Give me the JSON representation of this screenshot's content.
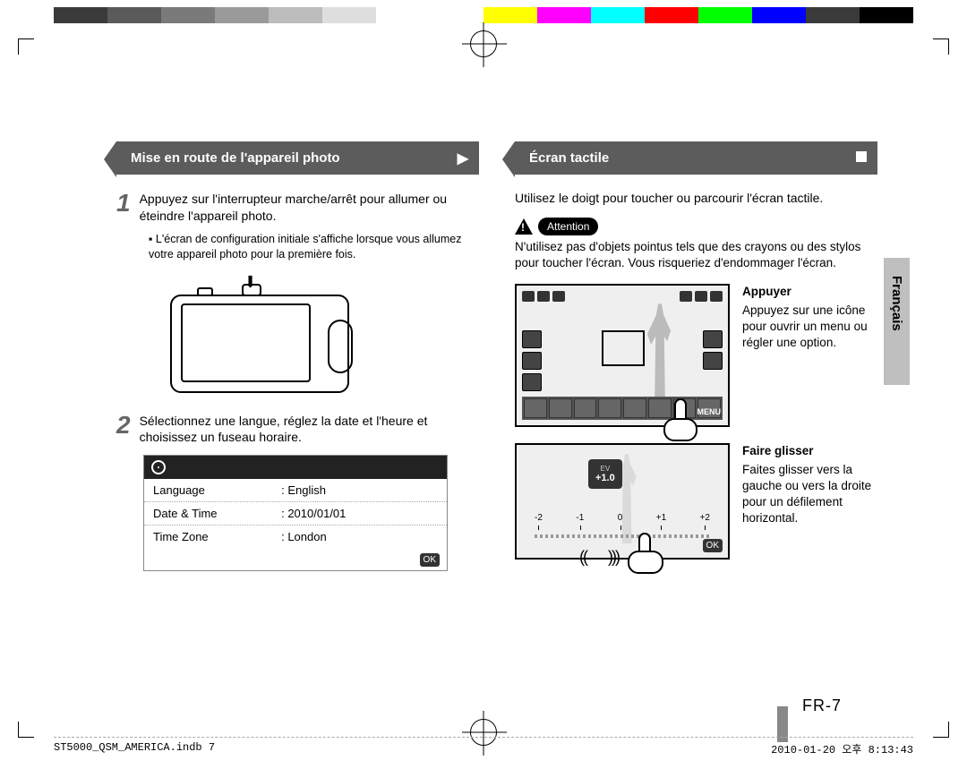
{
  "colorbar": [
    "#3a3a3a",
    "#5a5a5a",
    "#7a7a7a",
    "#9a9a9a",
    "#bcbcbc",
    "#dedede",
    "#ffffff",
    "#ffffff",
    "#ffff00",
    "#ff00ff",
    "#00ffff",
    "#ff0000",
    "#00ff00",
    "#0000ff",
    "#3a3a3a",
    "#000000"
  ],
  "left": {
    "heading": "Mise en route de l'appareil photo",
    "heading_marker": "▶",
    "step1_num": "1",
    "step1_text": "Appuyez sur l'interrupteur marche/arrêt pour allumer ou éteindre l'appareil photo.",
    "step1_bullet": "L'écran de configuration initiale s'affiche lorsque vous allumez votre appareil photo pour la première fois.",
    "camera_arrow": "⬇",
    "step2_num": "2",
    "step2_text": "Sélectionnez une langue, réglez la date et l'heure et choisissez un fuseau horaire.",
    "settings": {
      "rows": [
        {
          "k": "Language",
          "v": "English"
        },
        {
          "k": "Date & Time",
          "v": "2010/01/01"
        },
        {
          "k": "Time Zone",
          "v": "London"
        }
      ],
      "ok": "OK"
    }
  },
  "right": {
    "heading": "Écran tactile",
    "intro": "Utilisez le doigt pour toucher ou parcourir l'écran tactile.",
    "attention_label": "Attention",
    "attention_text": "N'utilisez pas d'objets pointus tels que des crayons ou des stylos pour toucher l'écran. Vous risqueriez d'endommager l'écran.",
    "tap": {
      "title": "Appuyer",
      "text": "Appuyez sur une icône pour ouvrir un menu ou régler une option.",
      "menu_label": "MENU"
    },
    "drag": {
      "title": "Faire glisser",
      "text": "Faites glisser vers la gauche ou vers la droite pour un défilement horizontal.",
      "ev_label": "EV",
      "ev_value": "+1.0",
      "scale": [
        "-2",
        "-1",
        "0",
        "+1",
        "+2"
      ],
      "ok": "OK"
    }
  },
  "side_tab": "Français",
  "page_num": "FR-7",
  "footer": {
    "left": "ST5000_QSM_AMERICA.indb   7",
    "right": "2010-01-20   오후 8:13:43"
  }
}
